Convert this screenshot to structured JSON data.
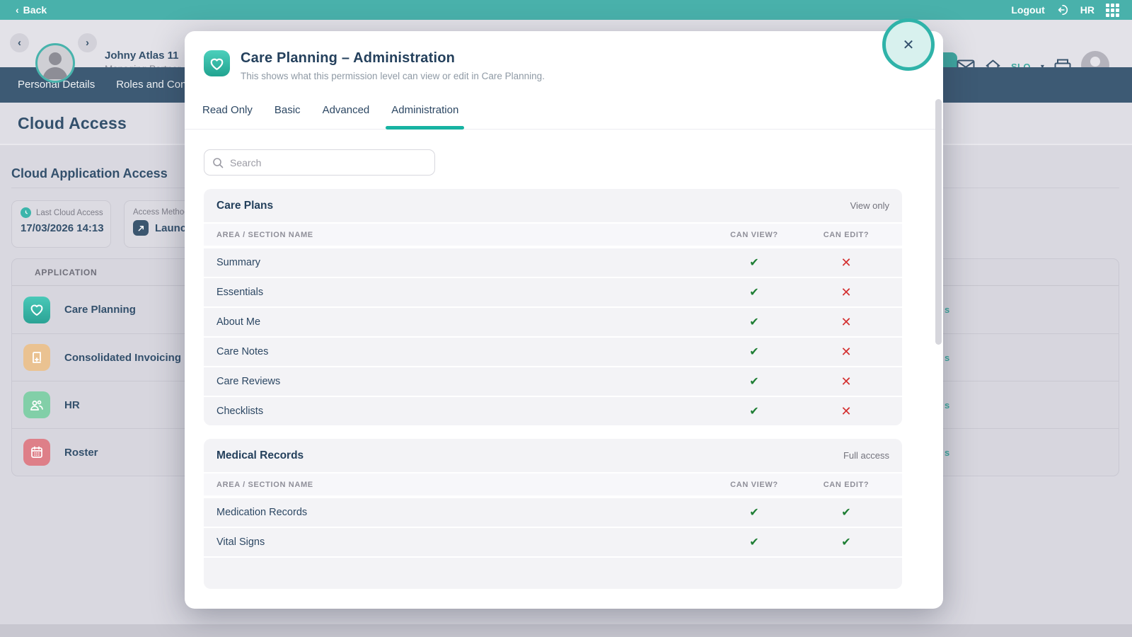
{
  "colors": {
    "accent_teal": "#2fb3a9",
    "nav_blue": "#3d5a74",
    "check_green": "#1e7e34",
    "cross_red": "#d32f2f"
  },
  "glyphs": {
    "check": "✔",
    "cross": "✕",
    "close": "✕",
    "back_chevron": "‹",
    "prev_chevron": "‹",
    "next_chevron": "›",
    "caret_down": "▾"
  },
  "topbar": {
    "back_label": "Back",
    "logout_label": "Logout",
    "org_label": "HR"
  },
  "header": {
    "person_name": "Johny Atlas 11",
    "person_role": "Managing Partner",
    "site_code": "SLO"
  },
  "nav": {
    "items": [
      "Personal Details",
      "Roles and Contr"
    ]
  },
  "page": {
    "title": "Cloud Access",
    "section_heading": "Cloud Application Access",
    "last_access": {
      "label": "Last Cloud Access",
      "value": "17/03/2026 14:13"
    },
    "access_method": {
      "label": "Access Method",
      "value": "Launche"
    },
    "app_table": {
      "column_header": "APPLICATION",
      "partial_link_text": "s",
      "apps": [
        {
          "name": "Care Planning",
          "icon": "heart"
        },
        {
          "name": "Consolidated Invoicing",
          "icon": "invoice"
        },
        {
          "name": "HR",
          "icon": "people"
        },
        {
          "name": "Roster",
          "icon": "calendar"
        }
      ]
    }
  },
  "modal": {
    "title": "Care Planning – Administration",
    "subtitle": "This shows what this permission level can view or edit in Care Planning.",
    "tabs": [
      "Read Only",
      "Basic",
      "Advanced",
      "Administration"
    ],
    "active_tab": "Administration",
    "search_placeholder": "Search",
    "sections": [
      {
        "title": "Care Plans",
        "access_label": "View only",
        "columns": [
          "AREA / SECTION NAME",
          "CAN VIEW?",
          "CAN EDIT?"
        ],
        "rows": [
          {
            "name": "Summary",
            "view": true,
            "edit": false
          },
          {
            "name": "Essentials",
            "view": true,
            "edit": false
          },
          {
            "name": "About Me",
            "view": true,
            "edit": false
          },
          {
            "name": "Care Notes",
            "view": true,
            "edit": false
          },
          {
            "name": "Care Reviews",
            "view": true,
            "edit": false
          },
          {
            "name": "Checklists",
            "view": true,
            "edit": false
          }
        ],
        "has_partial_row": false
      },
      {
        "title": "Medical Records",
        "access_label": "Full access",
        "columns": [
          "AREA / SECTION NAME",
          "CAN VIEW?",
          "CAN EDIT?"
        ],
        "rows": [
          {
            "name": "Medication Records",
            "view": true,
            "edit": true
          },
          {
            "name": "Vital Signs",
            "view": true,
            "edit": true
          }
        ],
        "has_partial_row": true
      }
    ]
  }
}
